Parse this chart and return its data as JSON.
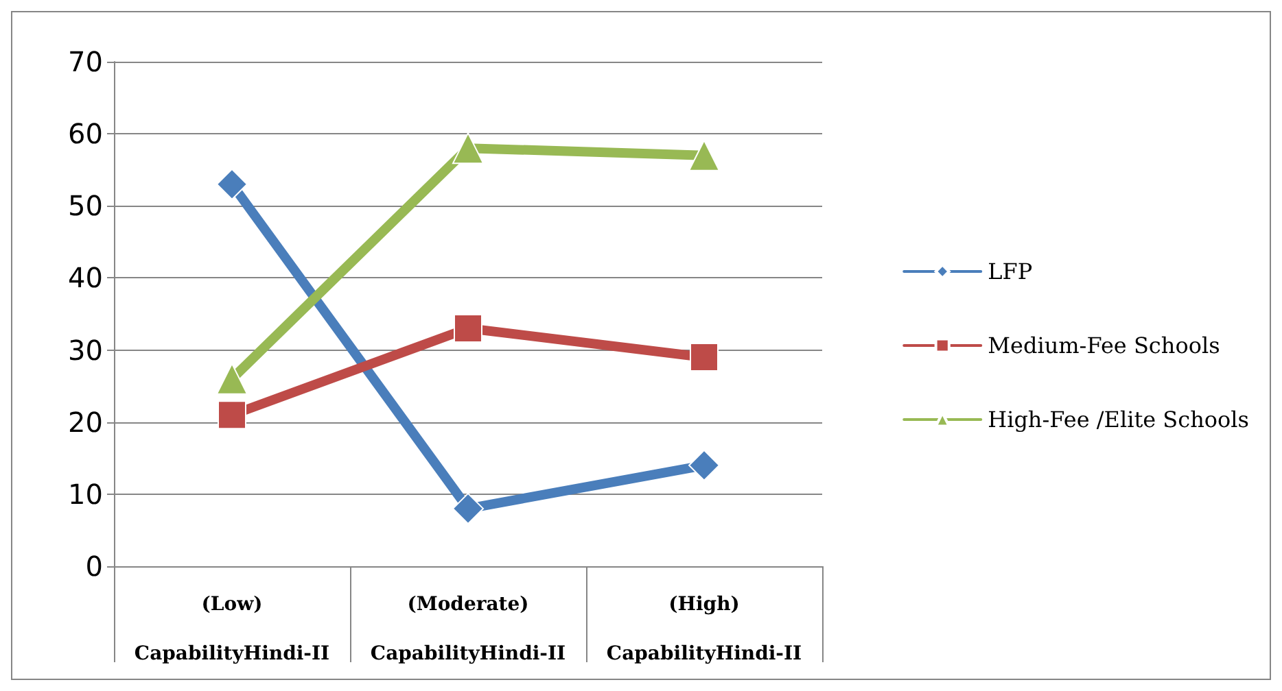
{
  "chart_data": {
    "type": "line",
    "categories": [
      "(Low)\nCapabilityHindi-II",
      "(Moderate)\nCapabilityHindi-II",
      "(High)\nCapabilityHindi-II"
    ],
    "series": [
      {
        "name": "LFP",
        "color": "#4a7ebb",
        "marker": "diamond",
        "values": [
          53,
          8,
          14
        ]
      },
      {
        "name": "Medium-Fee Schools",
        "color": "#be4b48",
        "marker": "square",
        "values": [
          21,
          33,
          29
        ]
      },
      {
        "name": "High-Fee /Elite Schools",
        "color": "#98b954",
        "marker": "triangle",
        "values": [
          26,
          58,
          57
        ]
      }
    ],
    "ylim": [
      0,
      70
    ],
    "yticks": [
      0,
      10,
      20,
      30,
      40,
      50,
      60,
      70
    ],
    "grid": "y",
    "legend": "right"
  }
}
